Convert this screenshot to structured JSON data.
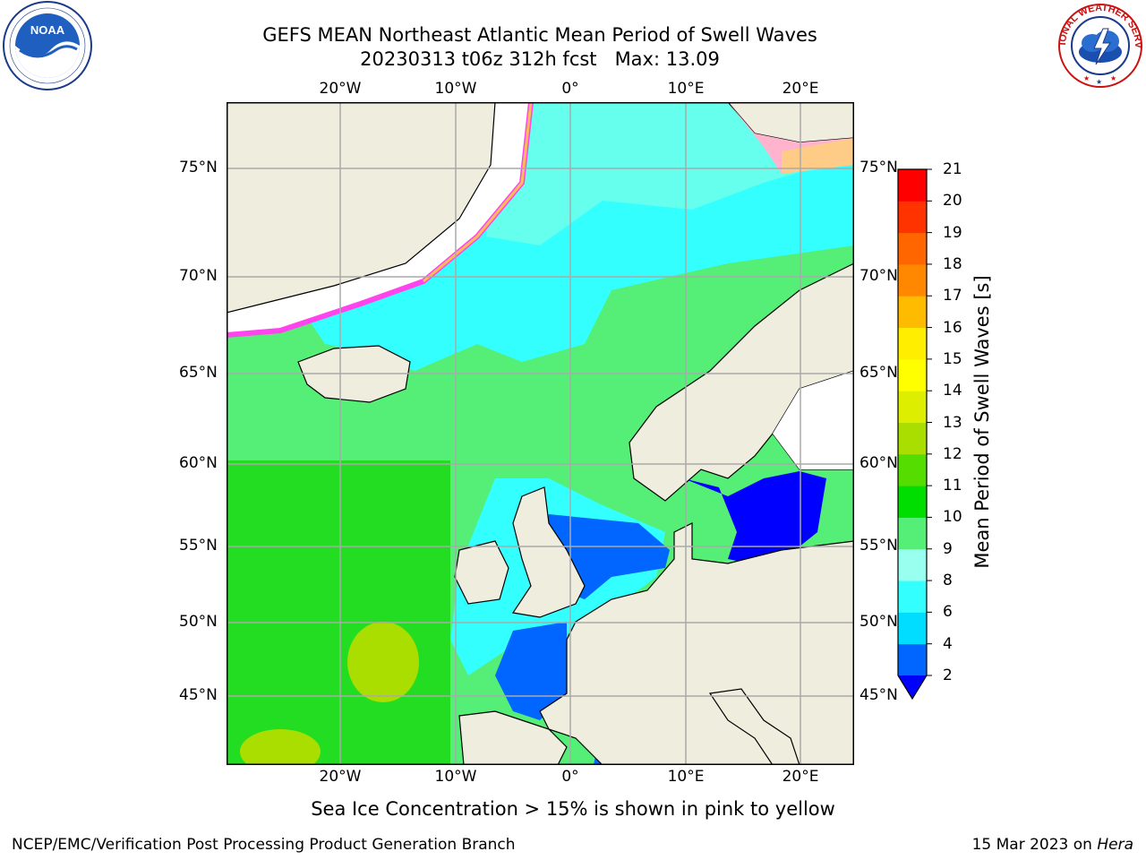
{
  "title_line1": "GEFS MEAN Northeast Atlantic Mean Period of Swell Waves",
  "title_line2": "20230313 t06z 312h fcst   Max: 13.09",
  "lat_labels": [
    "75°N",
    "70°N",
    "65°N",
    "60°N",
    "55°N",
    "50°N",
    "45°N"
  ],
  "lon_labels": [
    "20°W",
    "10°W",
    "0°",
    "10°E",
    "20°E"
  ],
  "colorbar": {
    "label": "Mean Period of Swell Waves [s]",
    "ticks": [
      "2",
      "4",
      "6",
      "8",
      "9",
      "10",
      "11",
      "12",
      "13",
      "14",
      "15",
      "16",
      "17",
      "18",
      "19",
      "20",
      "21"
    ],
    "colors": [
      "#0000ff",
      "#0066ff",
      "#00ddff",
      "#33ffff",
      "#99ffee",
      "#55ee77",
      "#00dd00",
      "#55dd00",
      "#aadd00",
      "#ddee00",
      "#ffff00",
      "#ffee00",
      "#ffbb00",
      "#ff8800",
      "#ff6600",
      "#ff3300",
      "#ff0000"
    ]
  },
  "ice_note": "Sea Ice Concentration > 15% is shown in pink to yellow",
  "footer_left": "NCEP/EMC/Verification Post Processing Product Generation Branch",
  "footer_right_date": "15 Mar 2023 on ",
  "footer_right_host": "Hera",
  "logos": {
    "noaa": "noaa-logo",
    "nws": "nws-logo"
  },
  "logo_text": {
    "noaa": "NOAA",
    "nws": "NATIONAL WEATHER SERVICE"
  }
}
